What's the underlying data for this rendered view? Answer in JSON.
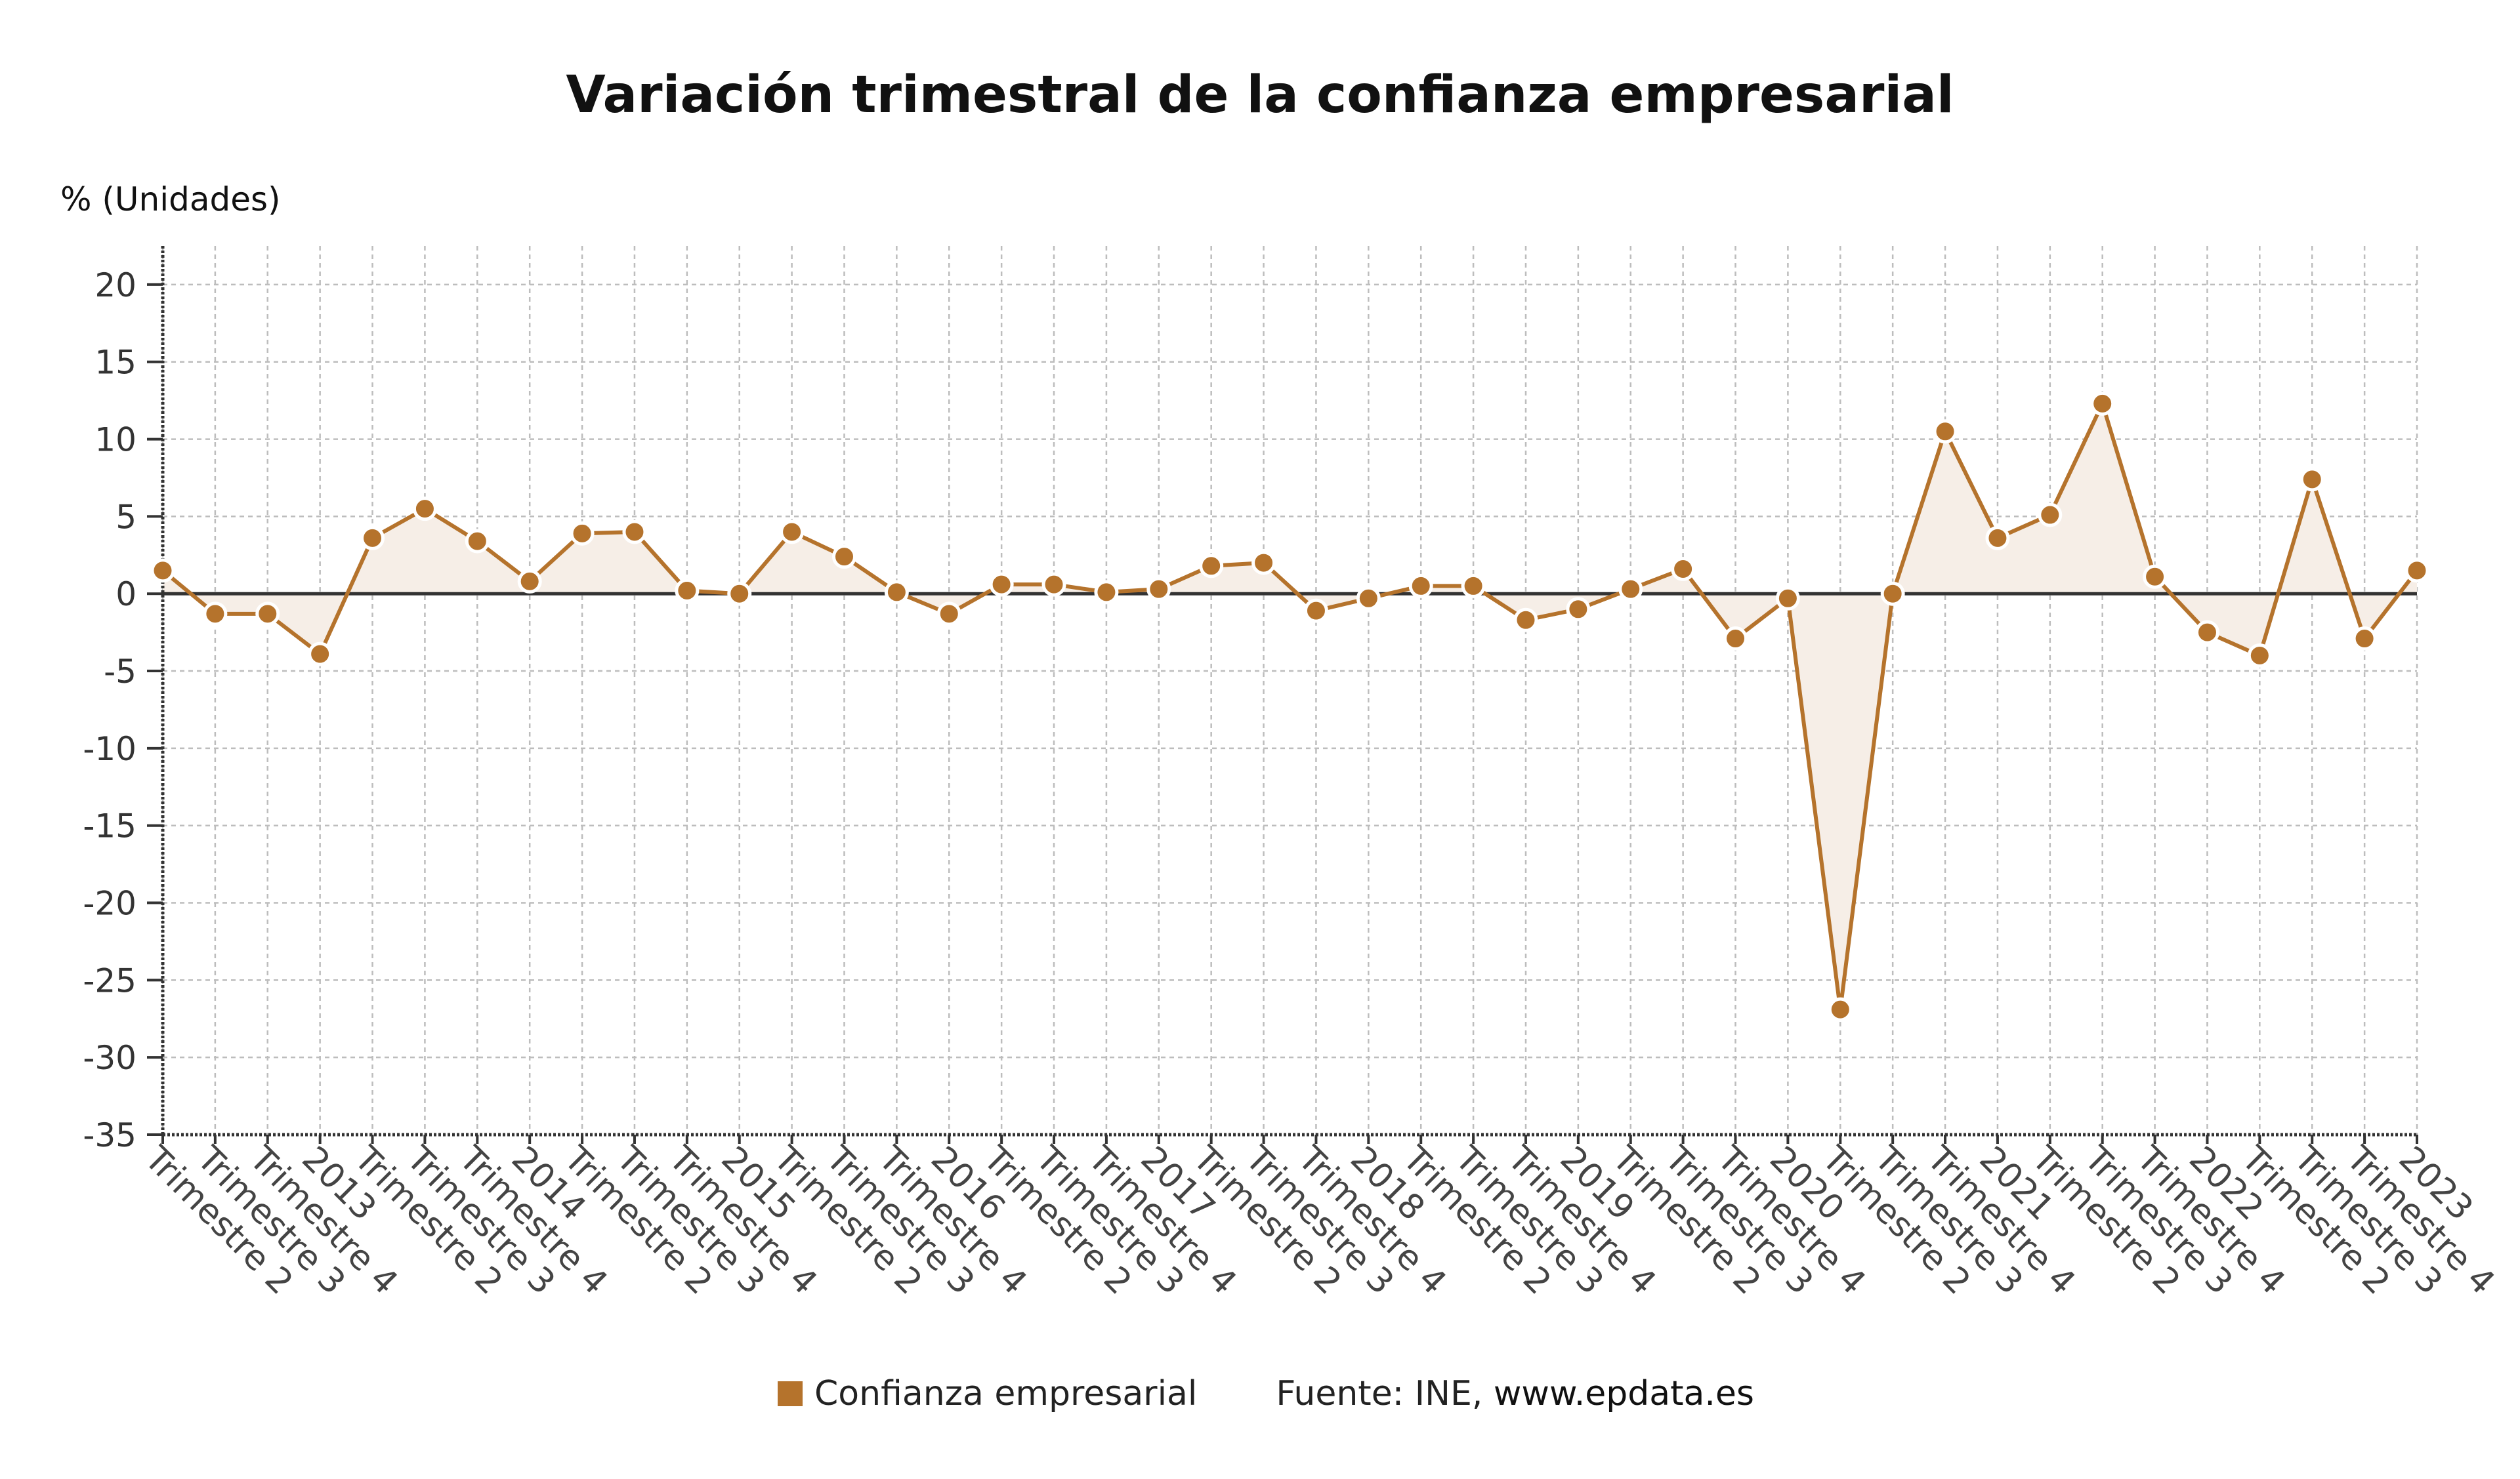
{
  "colors": {
    "series": "#b5732c",
    "area": "#f6eee7",
    "grid": "#bdbdbd",
    "axis": "#333333",
    "zero": "#333333"
  },
  "chart_data": {
    "type": "line",
    "title": "Variación trimestral de la confianza empresarial",
    "ylabel": "% (Unidades)",
    "ylim": [
      -35,
      22.5
    ],
    "yticks": [
      20,
      15,
      10,
      5,
      0,
      -5,
      -10,
      -15,
      -20,
      -25,
      -30,
      -35
    ],
    "grid": true,
    "legend_position": "bottom",
    "x": [
      "Trimestre 2",
      "Trimestre 3",
      "Trimestre 4",
      "2013",
      "Trimestre 2",
      "Trimestre 3",
      "Trimestre 4",
      "2014",
      "Trimestre 2",
      "Trimestre 3",
      "Trimestre 4",
      "2015",
      "Trimestre 2",
      "Trimestre 3",
      "Trimestre 4",
      "2016",
      "Trimestre 2",
      "Trimestre 3",
      "Trimestre 4",
      "2017",
      "Trimestre 2",
      "Trimestre 3",
      "Trimestre 4",
      "2018",
      "Trimestre 2",
      "Trimestre 3",
      "Trimestre 4",
      "2019",
      "Trimestre 2",
      "Trimestre 3",
      "Trimestre 4",
      "2020",
      "Trimestre 2",
      "Trimestre 3",
      "Trimestre 4",
      "2021",
      "Trimestre 2",
      "Trimestre 3",
      "Trimestre 4",
      "2022",
      "Trimestre 2",
      "Trimestre 3",
      "Trimestre 4",
      "2023"
    ],
    "series": [
      {
        "name": "Confianza empresarial",
        "values": [
          1.5,
          -1.3,
          -1.3,
          -3.9,
          3.6,
          5.5,
          3.4,
          0.8,
          3.9,
          4.0,
          0.2,
          0.0,
          4.0,
          2.4,
          0.1,
          -1.3,
          0.6,
          0.6,
          0.1,
          0.3,
          1.8,
          2.0,
          -1.1,
          -0.3,
          0.5,
          0.5,
          -1.7,
          -1.0,
          0.3,
          1.6,
          -2.9,
          -0.3,
          -26.9,
          0.0,
          10.5,
          3.6,
          5.1,
          12.3,
          1.1,
          -2.5,
          -4.0,
          7.4,
          -2.9,
          1.5
        ]
      }
    ]
  },
  "legend": {
    "series_label": "Confianza empresarial",
    "source_prefix": "Fuente: INE, ",
    "source_site": "www.epdata.es"
  }
}
